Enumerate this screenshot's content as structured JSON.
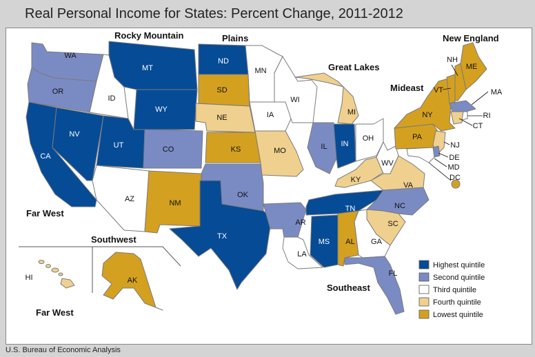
{
  "title": "Real Personal Income for States: Percent Change, 2011-2012",
  "source": "U.S. Bureau of Economic Analysis",
  "colors": {
    "highest": "#064b96",
    "second": "#7a8bc4",
    "third": "#ffffff",
    "fourth": "#f0d08e",
    "lowest": "#d4a020"
  },
  "legend": [
    {
      "key": "highest",
      "label": "Highest quintile"
    },
    {
      "key": "second",
      "label": "Second quintile"
    },
    {
      "key": "third",
      "label": "Third quintile"
    },
    {
      "key": "fourth",
      "label": "Fourth quintile"
    },
    {
      "key": "lowest",
      "label": "Lowest quintile"
    }
  ],
  "regions": {
    "rocky_mountain": "Rocky Mountain",
    "plains": "Plains",
    "new_england": "New England",
    "great_lakes": "Great Lakes",
    "mideast": "Mideast",
    "far_west": "Far West",
    "southwest": "Southwest",
    "southeast": "Southeast",
    "far_west_inset": "Far West"
  },
  "states": {
    "WA": {
      "label": "WA",
      "quintile": "second"
    },
    "OR": {
      "label": "OR",
      "quintile": "second"
    },
    "CA": {
      "label": "CA",
      "quintile": "highest"
    },
    "NV": {
      "label": "NV",
      "quintile": "highest"
    },
    "ID": {
      "label": "ID",
      "quintile": "third"
    },
    "MT": {
      "label": "MT",
      "quintile": "highest"
    },
    "WY": {
      "label": "WY",
      "quintile": "highest"
    },
    "UT": {
      "label": "UT",
      "quintile": "highest"
    },
    "CO": {
      "label": "CO",
      "quintile": "second"
    },
    "AZ": {
      "label": "AZ",
      "quintile": "third"
    },
    "NM": {
      "label": "NM",
      "quintile": "lowest"
    },
    "TX": {
      "label": "TX",
      "quintile": "highest"
    },
    "OK": {
      "label": "OK",
      "quintile": "second"
    },
    "ND": {
      "label": "ND",
      "quintile": "highest"
    },
    "SD": {
      "label": "SD",
      "quintile": "lowest"
    },
    "NE": {
      "label": "NE",
      "quintile": "fourth"
    },
    "KS": {
      "label": "KS",
      "quintile": "lowest"
    },
    "MN": {
      "label": "MN",
      "quintile": "third"
    },
    "IA": {
      "label": "IA",
      "quintile": "third"
    },
    "MO": {
      "label": "MO",
      "quintile": "fourth"
    },
    "WI": {
      "label": "WI",
      "quintile": "third"
    },
    "MI": {
      "label": "MI",
      "quintile": "fourth"
    },
    "IL": {
      "label": "IL",
      "quintile": "second"
    },
    "IN": {
      "label": "IN",
      "quintile": "highest"
    },
    "OH": {
      "label": "OH",
      "quintile": "third"
    },
    "KY": {
      "label": "KY",
      "quintile": "fourth"
    },
    "WV": {
      "label": "WV",
      "quintile": "third"
    },
    "VA": {
      "label": "VA",
      "quintile": "fourth"
    },
    "TN": {
      "label": "TN",
      "quintile": "highest"
    },
    "NC": {
      "label": "NC",
      "quintile": "second"
    },
    "SC": {
      "label": "SC",
      "quintile": "fourth"
    },
    "GA": {
      "label": "GA",
      "quintile": "third"
    },
    "FL": {
      "label": "FL",
      "quintile": "second"
    },
    "AL": {
      "label": "AL",
      "quintile": "lowest"
    },
    "MS": {
      "label": "MS",
      "quintile": "highest"
    },
    "AR": {
      "label": "AR",
      "quintile": "second"
    },
    "LA": {
      "label": "LA",
      "quintile": "third"
    },
    "PA": {
      "label": "PA",
      "quintile": "lowest"
    },
    "NY": {
      "label": "NY",
      "quintile": "lowest"
    },
    "NJ": {
      "label": "NJ",
      "quintile": "fourth"
    },
    "DE": {
      "label": "DE",
      "quintile": "second"
    },
    "MD": {
      "label": "MD",
      "quintile": "third"
    },
    "DC": {
      "label": "DC",
      "quintile": "lowest"
    },
    "VT": {
      "label": "VT",
      "quintile": "lowest"
    },
    "NH": {
      "label": "NH",
      "quintile": "lowest"
    },
    "ME": {
      "label": "ME",
      "quintile": "lowest"
    },
    "MA": {
      "label": "MA",
      "quintile": "second"
    },
    "RI": {
      "label": "RI",
      "quintile": "third"
    },
    "CT": {
      "label": "CT",
      "quintile": "fourth"
    },
    "AK": {
      "label": "AK",
      "quintile": "lowest"
    },
    "HI": {
      "label": "HI",
      "quintile": "fourth"
    }
  }
}
